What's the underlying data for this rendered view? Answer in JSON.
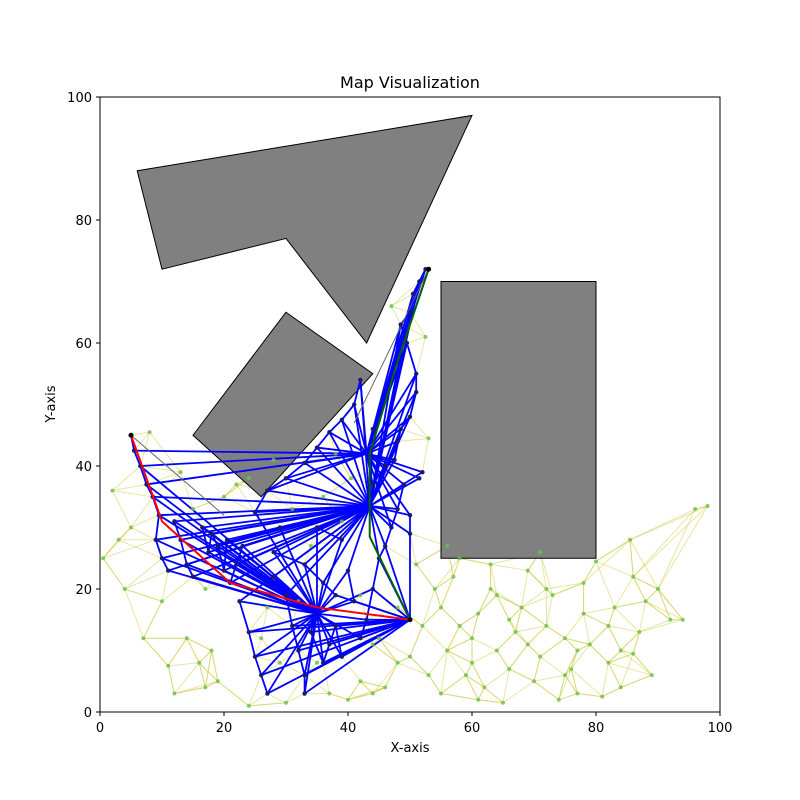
{
  "chart_data": {
    "type": "scatter",
    "title": "Map Visualization",
    "xlabel": "X-axis",
    "ylabel": "Y-axis",
    "xlim": [
      0,
      100
    ],
    "ylim": [
      0,
      100
    ],
    "xticks": [
      "0",
      "20",
      "40",
      "60",
      "80",
      "100"
    ],
    "yticks": [
      "0",
      "20",
      "40",
      "60",
      "80",
      "100"
    ],
    "grid": false,
    "colors": {
      "obstacle_fill": "#808080",
      "obstacle_edge": "#000000",
      "sample_points": "#6abf4b",
      "sample_edges": "#c8c832",
      "tree_edges": "#0000ff",
      "tree_nodes": "#1a1a6e",
      "path_red": "#ff0000",
      "path_green": "#006400",
      "direct_line": "#666666"
    },
    "obstacles": [
      {
        "points": [
          [
            6,
            88
          ],
          [
            60,
            97
          ],
          [
            43,
            60
          ],
          [
            30,
            77
          ],
          [
            10,
            72
          ]
        ]
      },
      {
        "points": [
          [
            30,
            65
          ],
          [
            44,
            55
          ],
          [
            26,
            35
          ],
          [
            15,
            45
          ]
        ]
      },
      {
        "points": [
          [
            55,
            70
          ],
          [
            80,
            70
          ],
          [
            80,
            25
          ],
          [
            55,
            25
          ]
        ]
      }
    ],
    "start": [
      50,
      15
    ],
    "goals": [
      [
        5,
        45
      ],
      [
        53,
        72
      ]
    ],
    "red_path": [
      [
        50,
        15
      ],
      [
        35,
        17
      ],
      [
        21,
        21
      ],
      [
        10,
        31
      ],
      [
        5,
        45
      ]
    ],
    "green_path": [
      [
        50,
        15
      ],
      [
        43.5,
        28.5
      ],
      [
        43.5,
        42
      ],
      [
        48,
        57
      ],
      [
        53,
        72
      ]
    ],
    "direct_lines": [
      [
        [
          5,
          45
        ],
        [
          20,
          32
        ]
      ],
      [
        [
          53,
          72
        ],
        [
          41,
          47
        ]
      ]
    ],
    "tree_hubs": [
      [
        50,
        15
      ],
      [
        43.5,
        33.5
      ],
      [
        35,
        16
      ],
      [
        43,
        42
      ]
    ],
    "tree_nodes": [
      [
        5,
        45
      ],
      [
        5.5,
        42.5
      ],
      [
        6.5,
        40
      ],
      [
        7.5,
        37
      ],
      [
        8.5,
        35
      ],
      [
        9.5,
        32
      ],
      [
        9,
        28
      ],
      [
        10,
        25
      ],
      [
        11,
        23
      ],
      [
        12,
        31
      ],
      [
        13,
        28
      ],
      [
        14,
        24
      ],
      [
        15,
        22
      ],
      [
        16.5,
        30
      ],
      [
        17.5,
        26
      ],
      [
        18,
        29
      ],
      [
        19,
        27
      ],
      [
        20,
        23
      ],
      [
        20.5,
        28
      ],
      [
        21,
        21
      ],
      [
        22,
        24
      ],
      [
        23,
        27
      ],
      [
        22.5,
        18
      ],
      [
        24,
        13
      ],
      [
        25,
        9
      ],
      [
        26,
        6
      ],
      [
        27,
        3
      ],
      [
        28,
        22
      ],
      [
        30,
        19
      ],
      [
        31,
        14
      ],
      [
        32,
        10
      ],
      [
        33,
        6
      ],
      [
        33,
        3
      ],
      [
        34,
        13
      ],
      [
        36,
        8
      ],
      [
        37,
        11
      ],
      [
        38,
        14
      ],
      [
        39,
        9
      ],
      [
        40,
        23
      ],
      [
        41,
        18
      ],
      [
        42,
        12
      ],
      [
        43,
        15
      ],
      [
        44,
        20
      ],
      [
        45,
        25
      ],
      [
        46,
        27
      ],
      [
        47,
        30
      ],
      [
        48,
        33
      ],
      [
        49,
        37
      ],
      [
        25,
        32.5
      ],
      [
        27,
        36
      ],
      [
        30,
        38
      ],
      [
        33,
        40.5
      ],
      [
        35,
        43
      ],
      [
        37,
        45.5
      ],
      [
        39,
        47.5
      ],
      [
        41,
        50
      ],
      [
        42,
        54
      ],
      [
        44,
        37
      ],
      [
        46,
        40
      ],
      [
        47.5,
        41
      ],
      [
        48.5,
        46
      ],
      [
        50,
        48
      ],
      [
        51,
        52
      ],
      [
        51,
        55
      ],
      [
        49.5,
        60
      ],
      [
        48.5,
        63
      ],
      [
        50,
        65
      ],
      [
        50.5,
        68
      ],
      [
        51.5,
        70
      ],
      [
        52.5,
        72
      ],
      [
        53,
        72
      ],
      [
        28,
        26
      ],
      [
        33,
        24
      ],
      [
        36,
        21
      ],
      [
        38,
        19
      ],
      [
        29,
        30
      ],
      [
        35,
        30
      ],
      [
        39,
        28
      ],
      [
        50,
        29
      ],
      [
        50,
        32
      ],
      [
        52,
        39
      ],
      [
        48,
        44
      ],
      [
        51.5,
        38
      ],
      [
        44,
        46
      ]
    ],
    "random_samples": [
      [
        2,
        36
      ],
      [
        0.5,
        25
      ],
      [
        4,
        20
      ],
      [
        5,
        30
      ],
      [
        8,
        45.5
      ],
      [
        13,
        39
      ],
      [
        11,
        7.5
      ],
      [
        16,
        8
      ],
      [
        17,
        4
      ],
      [
        18,
        10
      ],
      [
        20,
        35
      ],
      [
        22,
        37
      ],
      [
        24,
        1
      ],
      [
        28,
        41
      ],
      [
        30,
        1.5
      ],
      [
        35,
        8
      ],
      [
        37,
        3
      ],
      [
        38,
        42
      ],
      [
        40,
        2
      ],
      [
        42,
        5
      ],
      [
        44,
        11
      ],
      [
        46,
        4
      ],
      [
        47,
        66
      ],
      [
        50,
        9
      ],
      [
        51,
        24
      ],
      [
        52.5,
        61
      ],
      [
        53,
        44.5
      ],
      [
        54,
        20
      ],
      [
        55,
        3
      ],
      [
        56,
        10
      ],
      [
        57,
        22
      ],
      [
        58,
        14
      ],
      [
        59,
        6
      ],
      [
        60,
        12
      ],
      [
        61,
        16
      ],
      [
        62,
        4
      ],
      [
        63,
        20
      ],
      [
        64,
        10
      ],
      [
        65,
        1.5
      ],
      [
        66,
        7
      ],
      [
        67,
        13
      ],
      [
        68,
        17
      ],
      [
        69,
        23
      ],
      [
        70,
        5
      ],
      [
        71,
        9
      ],
      [
        72,
        14
      ],
      [
        73,
        19
      ],
      [
        74,
        2
      ],
      [
        75,
        12
      ],
      [
        76,
        7
      ],
      [
        77,
        3
      ],
      [
        78,
        16
      ],
      [
        79,
        11
      ],
      [
        80,
        24.5
      ],
      [
        81,
        2.5
      ],
      [
        82,
        8
      ],
      [
        83,
        17
      ],
      [
        84,
        10
      ],
      [
        85.5,
        28
      ],
      [
        86,
        9.5
      ],
      [
        87,
        13
      ],
      [
        88,
        18
      ],
      [
        90,
        20
      ],
      [
        92,
        15
      ],
      [
        94,
        15
      ],
      [
        96,
        33
      ],
      [
        98,
        33.5
      ],
      [
        14,
        12
      ],
      [
        19,
        5
      ],
      [
        26,
        12
      ],
      [
        29,
        8
      ],
      [
        32,
        18
      ],
      [
        36,
        35
      ],
      [
        39,
        31
      ],
      [
        40.5,
        38
      ],
      [
        45,
        12
      ],
      [
        48,
        8
      ],
      [
        52,
        14
      ],
      [
        55,
        17
      ],
      [
        58,
        25
      ],
      [
        60,
        8
      ],
      [
        63,
        24
      ],
      [
        66,
        15
      ],
      [
        69,
        11
      ],
      [
        72,
        20
      ],
      [
        75,
        6
      ],
      [
        78,
        21
      ],
      [
        82,
        14
      ],
      [
        86,
        22
      ],
      [
        10,
        18
      ],
      [
        15,
        33
      ],
      [
        17,
        20
      ],
      [
        24,
        38
      ],
      [
        31,
        33
      ],
      [
        34,
        27
      ],
      [
        42,
        19
      ],
      [
        44,
        3
      ],
      [
        48,
        17
      ],
      [
        3,
        28
      ],
      [
        7,
        12
      ],
      [
        12,
        3
      ],
      [
        27,
        17
      ],
      [
        53,
        6
      ],
      [
        56,
        27
      ],
      [
        61,
        2
      ],
      [
        64,
        19
      ],
      [
        71,
        26
      ],
      [
        77,
        10
      ],
      [
        84,
        4
      ],
      [
        89,
        6
      ]
    ]
  }
}
